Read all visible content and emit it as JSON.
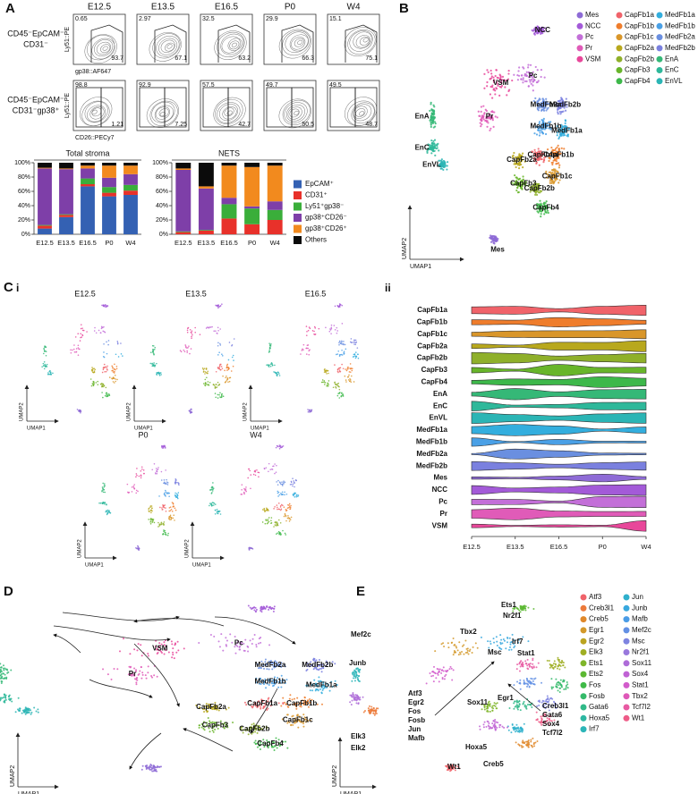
{
  "panel_labels": {
    "a": "A",
    "b": "B",
    "c": "C",
    "c_i": "i",
    "c_ii": "ii",
    "d": "D",
    "e": "E"
  },
  "umap_axes": {
    "x": "UMAP1",
    "y": "UMAP2"
  },
  "panel_a": {
    "columns": [
      "E12.5",
      "E13.5",
      "E16.5",
      "P0",
      "W4"
    ],
    "rows": [
      {
        "label": [
          "CD45⁻EpCAM⁻",
          "CD31⁻"
        ],
        "y_axis": "Ly51::PE",
        "x_axis": "gp38::AF647",
        "gates": [
          [
            "0.65",
            "93.7"
          ],
          [
            "2.97",
            "67.1"
          ],
          [
            "32.5",
            "63.2"
          ],
          [
            "29.9",
            "66.3"
          ],
          [
            "15.1",
            "75.1"
          ]
        ]
      },
      {
        "label": [
          "CD45⁻EpCAM⁻",
          "CD31⁻gp38⁺"
        ],
        "y_axis": "Ly51::PE",
        "x_axis": "CD26::PECy7",
        "gates": [
          [
            "98.8",
            "1.21"
          ],
          [
            "92.9",
            "7.25"
          ],
          [
            "57.5",
            "42.7"
          ],
          [
            "49.7",
            "50.5"
          ],
          [
            "49.5",
            "48.7"
          ]
        ]
      }
    ]
  },
  "chart_data": [
    {
      "type": "stacked-bar",
      "title": "Total stroma",
      "categories": [
        "E12.5",
        "E13.5",
        "E16.5",
        "P0",
        "W4"
      ],
      "ylim": [
        0,
        100
      ],
      "yticks": [
        {
          "value": 0,
          "label": "0%"
        },
        {
          "value": 20,
          "label": "20%"
        },
        {
          "value": 40,
          "label": "40%"
        },
        {
          "value": 60,
          "label": "60%"
        },
        {
          "value": 80,
          "label": "80%"
        },
        {
          "value": 100,
          "label": "100%"
        }
      ],
      "series": [
        {
          "name": "EpCAM⁺",
          "color": "#3461b3",
          "values": [
            8,
            24,
            67,
            53,
            55
          ]
        },
        {
          "name": "CD31⁺",
          "color": "#e8312a",
          "values": [
            4,
            3,
            3,
            5,
            6
          ]
        },
        {
          "name": "Ly51⁺gp38⁻",
          "color": "#3aae3a",
          "values": [
            1,
            1,
            8,
            8,
            8
          ]
        },
        {
          "name": "gp38⁺CD26⁻",
          "color": "#7e3fa8",
          "values": [
            79,
            63,
            14,
            13,
            15
          ]
        },
        {
          "name": "gp38⁺CD26⁺",
          "color": "#f28a1e",
          "values": [
            1,
            1,
            4,
            17,
            12
          ]
        },
        {
          "name": "Others",
          "color": "#0b0b0b",
          "values": [
            7,
            8,
            4,
            4,
            4
          ]
        }
      ]
    },
    {
      "type": "stacked-bar",
      "title": "NETS",
      "categories": [
        "E12.5",
        "E13.5",
        "E16.5",
        "P0",
        "W4"
      ],
      "ylim": [
        0,
        100
      ],
      "yticks": [
        {
          "value": 0,
          "label": "0%"
        },
        {
          "value": 20,
          "label": "20%"
        },
        {
          "value": 40,
          "label": "40%"
        },
        {
          "value": 60,
          "label": "60%"
        },
        {
          "value": 80,
          "label": "80%"
        },
        {
          "value": 100,
          "label": "100%"
        }
      ],
      "series": [
        {
          "color": "#3461b3",
          "values": [
            0,
            0,
            0,
            0,
            0
          ]
        },
        {
          "color": "#e8312a",
          "values": [
            3,
            5,
            22,
            14,
            20
          ]
        },
        {
          "color": "#3aae3a",
          "values": [
            1,
            1,
            20,
            22,
            14
          ]
        },
        {
          "color": "#7e3fa8",
          "values": [
            86,
            58,
            9,
            3,
            12
          ]
        },
        {
          "color": "#f28a1e",
          "values": [
            2,
            3,
            45,
            55,
            50
          ]
        },
        {
          "color": "#0b0b0b",
          "values": [
            8,
            33,
            4,
            6,
            4
          ]
        }
      ]
    }
  ],
  "panel_b": {
    "clusters": [
      {
        "name": "Mes",
        "color": "#8e6bd6"
      },
      {
        "name": "NCC",
        "color": "#a35ad8"
      },
      {
        "name": "Pc",
        "color": "#c36fd8"
      },
      {
        "name": "Pr",
        "color": "#e05bb8"
      },
      {
        "name": "VSM",
        "color": "#e8479a"
      },
      {
        "name": "CapFb1a",
        "color": "#f0636a"
      },
      {
        "name": "CapFb1b",
        "color": "#ef7d2c"
      },
      {
        "name": "CapFb1c",
        "color": "#d9962a"
      },
      {
        "name": "CapFb2a",
        "color": "#b8a81d"
      },
      {
        "name": "CapFb2b",
        "color": "#8fb02a"
      },
      {
        "name": "CapFb3",
        "color": "#68b52a"
      },
      {
        "name": "CapFb4",
        "color": "#3db84a"
      },
      {
        "name": "MedFb1a",
        "color": "#33aede"
      },
      {
        "name": "MedFb1b",
        "color": "#4aa0e6"
      },
      {
        "name": "MedFb2a",
        "color": "#6a8fe0"
      },
      {
        "name": "MedFb2b",
        "color": "#7a80df"
      },
      {
        "name": "EnA",
        "color": "#35b877"
      },
      {
        "name": "EnC",
        "color": "#2eb89a"
      },
      {
        "name": "EnVL",
        "color": "#2bb5b5"
      }
    ]
  },
  "panel_c": {
    "timepoints": [
      "E12.5",
      "E13.5",
      "E16.5",
      "P0",
      "W4"
    ],
    "violin_rows": [
      "CapFb1a",
      "CapFb1b",
      "CapFb1c",
      "CapFb2a",
      "CapFb2b",
      "CapFb3",
      "CapFb4",
      "EnA",
      "EnC",
      "EnVL",
      "MedFb1a",
      "MedFb1b",
      "MedFb2a",
      "MedFb2b",
      "Mes",
      "NCC",
      "Pc",
      "Pr",
      "VSM"
    ],
    "violin_x": [
      "E12.5",
      "E13.5",
      "E16.5",
      "P0",
      "W4"
    ]
  },
  "panel_e": {
    "genes": [
      {
        "name": "Atf3",
        "color": "#f0636a"
      },
      {
        "name": "Creb3l1",
        "color": "#ec7a3a"
      },
      {
        "name": "Creb5",
        "color": "#e0882a"
      },
      {
        "name": "Egr1",
        "color": "#d3992a"
      },
      {
        "name": "Egr2",
        "color": "#bba420"
      },
      {
        "name": "Elk3",
        "color": "#9fae22"
      },
      {
        "name": "Ets1",
        "color": "#7fb52a"
      },
      {
        "name": "Ets2",
        "color": "#5cb832"
      },
      {
        "name": "Fos",
        "color": "#3fba48"
      },
      {
        "name": "Fosb",
        "color": "#34ba6a"
      },
      {
        "name": "Gata6",
        "color": "#30b988"
      },
      {
        "name": "Hoxa5",
        "color": "#2db7a2"
      },
      {
        "name": "Irf7",
        "color": "#2bb5b8"
      },
      {
        "name": "Jun",
        "color": "#2fb0cc"
      },
      {
        "name": "Junb",
        "color": "#38a8de"
      },
      {
        "name": "Mafb",
        "color": "#4a9ce6"
      },
      {
        "name": "Mef2c",
        "color": "#6390e4"
      },
      {
        "name": "Msc",
        "color": "#7e84e0"
      },
      {
        "name": "Nr2f1",
        "color": "#9878dc"
      },
      {
        "name": "Sox11",
        "color": "#ae6cd8"
      },
      {
        "name": "Sox4",
        "color": "#c062d4"
      },
      {
        "name": "Stat1",
        "color": "#d25ccb"
      },
      {
        "name": "Tbx2",
        "color": "#df58b8"
      },
      {
        "name": "Tcf7l2",
        "color": "#e85aa2"
      },
      {
        "name": "Wt1",
        "color": "#ee5c88"
      }
    ],
    "map_labels": [
      "Mef2c",
      "Junb",
      "Elk3",
      "Elk2",
      "Ets1",
      "Nr2f1",
      "Tbx2",
      "Irf7",
      "Stat1",
      "Msc",
      "Egr1",
      "Sox11",
      "Hoxa5",
      "Wt1",
      "Creb5"
    ],
    "group_left": [
      "Atf3",
      "Egr2",
      "Fos",
      "Fosb",
      "Jun",
      "Mafb"
    ],
    "group_right": [
      "Creb3l1",
      "Gata6",
      "Sox4",
      "Tcf7l2"
    ]
  }
}
